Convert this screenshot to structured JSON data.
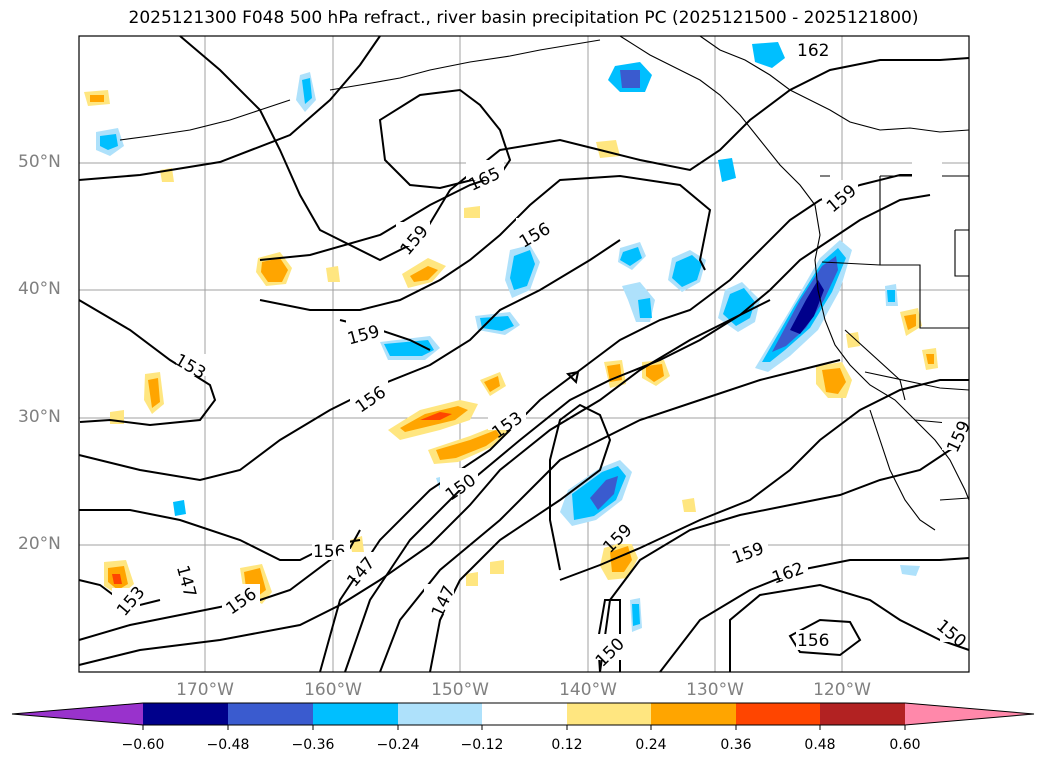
{
  "title": "2025121300 F048 500 hPa refract., river basin precipitation PC (2025121500 - 2025121800)",
  "lat_labels": [
    "50°N",
    "40°N",
    "30°N",
    "20°N"
  ],
  "lon_labels": [
    "170°W",
    "160°W",
    "150°W",
    "140°W",
    "130°W",
    "120°W"
  ],
  "colorbar": {
    "ticks": [
      "−0.60",
      "−0.48",
      "−0.36",
      "−0.24",
      "−0.12",
      "0.12",
      "0.24",
      "0.36",
      "0.48",
      "0.60"
    ],
    "colors": [
      "#9932cc",
      "#00008b",
      "#3a5bcf",
      "#00bfff",
      "#aee1fb",
      "#ffffff",
      "#ffe680",
      "#ffa500",
      "#ff4500",
      "#b22222",
      "#ff88aa",
      "#ff88aa"
    ],
    "arrow_left_color": "#9932cc",
    "arrow_right_color": "#ff88aa"
  },
  "contour_labels": [
    "162",
    "165",
    "159",
    "156",
    "159",
    "159",
    "153",
    "156",
    "153",
    "150",
    "159",
    "156",
    "147",
    "147",
    "150",
    "147",
    "153",
    "159",
    "162",
    "156",
    "150",
    "159",
    "156"
  ],
  "colors": {
    "grid": "#a0a0a0",
    "contour": "#000000",
    "coast": "#000000"
  }
}
